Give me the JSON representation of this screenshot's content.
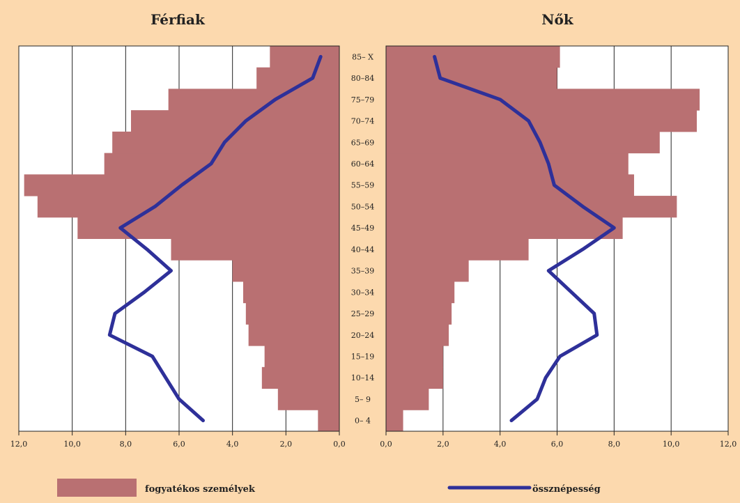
{
  "chart_data": {
    "type": "bar",
    "subtype": "population-pyramid",
    "panels": [
      {
        "title": "Férfiak",
        "side": "left"
      },
      {
        "title": "Nők",
        "side": "right"
      }
    ],
    "age_groups": [
      "0– 4",
      "5– 9",
      "10–14",
      "15–19",
      "20–24",
      "25–29",
      "30–34",
      "35–39",
      "40–44",
      "45–49",
      "50–54",
      "55–59",
      "60–64",
      "65–69",
      "70–74",
      "75–79",
      "80–84",
      "85– X"
    ],
    "x_ticks": [
      "0,0",
      "2,0",
      "4,0",
      "6,0",
      "8,0",
      "10,0",
      "12,0"
    ],
    "x_range": [
      0,
      12
    ],
    "series": [
      {
        "name": "fogyatékos személyek",
        "kind": "bar",
        "color": "#b97072",
        "men": [
          0.8,
          2.3,
          2.9,
          2.8,
          3.4,
          3.5,
          3.6,
          4.0,
          6.3,
          9.8,
          11.3,
          11.8,
          8.8,
          8.5,
          7.8,
          6.4,
          3.1,
          2.6
        ],
        "women": [
          0.6,
          1.5,
          2.0,
          2.0,
          2.2,
          2.3,
          2.4,
          2.9,
          5.0,
          8.3,
          10.2,
          8.7,
          8.5,
          9.6,
          10.9,
          11.0,
          6.0,
          6.1
        ]
      },
      {
        "name": "össznépesség",
        "kind": "line",
        "color": "#2e3099",
        "men": [
          5.1,
          6.0,
          6.5,
          7.0,
          8.6,
          8.4,
          7.3,
          6.3,
          7.2,
          8.2,
          6.9,
          5.9,
          4.8,
          4.3,
          3.5,
          2.4,
          1.0,
          0.7
        ],
        "women": [
          4.4,
          5.3,
          5.6,
          6.1,
          7.4,
          7.3,
          6.5,
          5.7,
          6.9,
          8.0,
          6.9,
          5.9,
          5.7,
          5.4,
          5.0,
          4.0,
          1.9,
          1.7
        ]
      }
    ],
    "grid": "vertical",
    "legend_position": "bottom"
  }
}
